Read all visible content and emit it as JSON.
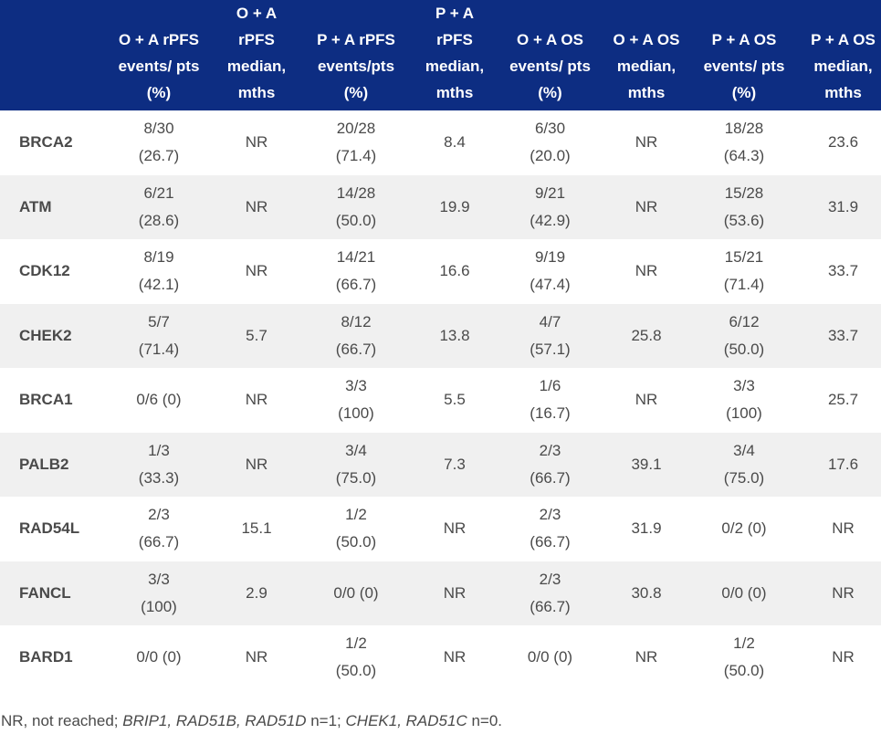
{
  "table": {
    "headers": [
      {
        "lines": []
      },
      {
        "lines": [
          "O + A rPFS",
          "events/ pts",
          "(%)"
        ]
      },
      {
        "lines": [
          "O + A",
          "rPFS",
          "median,",
          "mths"
        ]
      },
      {
        "lines": [
          "P + A rPFS",
          "events/pts",
          "(%)"
        ]
      },
      {
        "lines": [
          "P + A",
          "rPFS",
          "median,",
          "mths"
        ]
      },
      {
        "lines": [
          "O + A OS",
          "events/ pts",
          "(%)"
        ]
      },
      {
        "lines": [
          "O + A OS",
          "median,",
          "mths"
        ]
      },
      {
        "lines": [
          "P + A OS",
          "events/ pts",
          "(%)"
        ]
      },
      {
        "lines": [
          "P + A OS",
          "median,",
          "mths"
        ]
      }
    ],
    "rows": [
      {
        "gene": "BRCA2",
        "cells": [
          [
            "8/30",
            "(26.7)"
          ],
          [
            "NR"
          ],
          [
            "20/28",
            "(71.4)"
          ],
          [
            "8.4"
          ],
          [
            "6/30",
            "(20.0)"
          ],
          [
            "NR"
          ],
          [
            "18/28",
            "(64.3)"
          ],
          [
            "23.6"
          ]
        ]
      },
      {
        "gene": "ATM",
        "cells": [
          [
            "6/21",
            "(28.6)"
          ],
          [
            "NR"
          ],
          [
            "14/28",
            "(50.0)"
          ],
          [
            "19.9"
          ],
          [
            "9/21",
            "(42.9)"
          ],
          [
            "NR"
          ],
          [
            "15/28",
            "(53.6)"
          ],
          [
            "31.9"
          ]
        ]
      },
      {
        "gene": "CDK12",
        "cells": [
          [
            "8/19",
            "(42.1)"
          ],
          [
            "NR"
          ],
          [
            "14/21",
            "(66.7)"
          ],
          [
            "16.6"
          ],
          [
            "9/19",
            "(47.4)"
          ],
          [
            "NR"
          ],
          [
            "15/21",
            "(71.4)"
          ],
          [
            "33.7"
          ]
        ]
      },
      {
        "gene": "CHEK2",
        "cells": [
          [
            "5/7",
            "(71.4)"
          ],
          [
            "5.7"
          ],
          [
            "8/12",
            "(66.7)"
          ],
          [
            "13.8"
          ],
          [
            "4/7",
            "(57.1)"
          ],
          [
            "25.8"
          ],
          [
            "6/12",
            "(50.0)"
          ],
          [
            "33.7"
          ]
        ]
      },
      {
        "gene": "BRCA1",
        "cells": [
          [
            "0/6 (0)"
          ],
          [
            "NR"
          ],
          [
            "3/3",
            "(100)"
          ],
          [
            "5.5"
          ],
          [
            "1/6",
            "(16.7)"
          ],
          [
            "NR"
          ],
          [
            "3/3",
            "(100)"
          ],
          [
            "25.7"
          ]
        ]
      },
      {
        "gene": "PALB2",
        "cells": [
          [
            "1/3",
            "(33.3)"
          ],
          [
            "NR"
          ],
          [
            "3/4",
            "(75.0)"
          ],
          [
            "7.3"
          ],
          [
            "2/3",
            "(66.7)"
          ],
          [
            "39.1"
          ],
          [
            "3/4",
            "(75.0)"
          ],
          [
            "17.6"
          ]
        ]
      },
      {
        "gene": "RAD54L",
        "cells": [
          [
            "2/3",
            "(66.7)"
          ],
          [
            "15.1"
          ],
          [
            "1/2",
            "(50.0)"
          ],
          [
            "NR"
          ],
          [
            "2/3",
            "(66.7)"
          ],
          [
            "31.9"
          ],
          [
            "0/2 (0)"
          ],
          [
            "NR"
          ]
        ]
      },
      {
        "gene": "FANCL",
        "cells": [
          [
            "3/3",
            "(100)"
          ],
          [
            "2.9"
          ],
          [
            "0/0 (0)"
          ],
          [
            "NR"
          ],
          [
            "2/3",
            "(66.7)"
          ],
          [
            "30.8"
          ],
          [
            "0/0 (0)"
          ],
          [
            "NR"
          ]
        ]
      },
      {
        "gene": "BARD1",
        "cells": [
          [
            "0/0 (0)"
          ],
          [
            "NR"
          ],
          [
            "1/2",
            "(50.0)"
          ],
          [
            "NR"
          ],
          [
            "0/0 (0)"
          ],
          [
            "NR"
          ],
          [
            "1/2",
            "(50.0)"
          ],
          [
            "NR"
          ]
        ]
      }
    ]
  },
  "footnote": {
    "segments": [
      {
        "text": "NR, not reached; ",
        "italic": false
      },
      {
        "text": "BRIP1, RAD51B, RAD51D",
        "italic": true
      },
      {
        "text": " n=1; ",
        "italic": false
      },
      {
        "text": "CHEK1, RAD51C",
        "italic": true
      },
      {
        "text": " n=0.",
        "italic": false
      }
    ]
  },
  "colors": {
    "header_bg": "#0d2d82",
    "header_text": "#ffffff",
    "stripe_bg": "#f0f0f0",
    "body_text": "#4a4a4a"
  }
}
